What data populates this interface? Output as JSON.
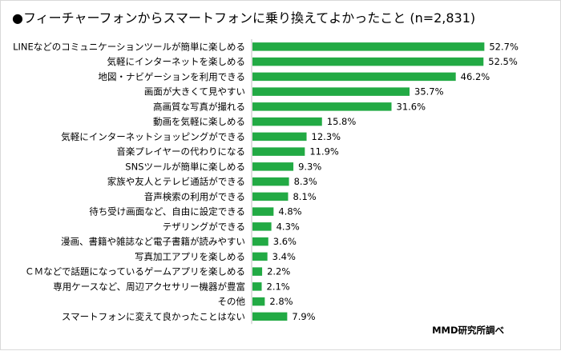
{
  "chart_data": {
    "type": "bar",
    "orientation": "horizontal",
    "title": "●フィーチャーフォンからスマートフォンに乗り換えてよかったこと (n=2,831)",
    "categories": [
      "LINEなどのコミュニケーションツールが簡単に楽しめる",
      "気軽にインターネットを楽しめる",
      "地図・ナビゲーションを利用できる",
      "画面が大きくて見やすい",
      "高画質な写真が撮れる",
      "動画を気軽に楽しめる",
      "気軽にインターネットショッピングができる",
      "音楽プレイヤーの代わりになる",
      "SNSツールが簡単に楽しめる",
      "家族や友人とテレビ通話ができる",
      "音声検索の利用ができる",
      "待ち受け画面など、自由に設定できる",
      "テザリングができる",
      "漫画、書籍や雑誌など電子書籍が読みやすい",
      "写真加工アプリを楽しめる",
      "ＣＭなどで話題になっているゲームアプリを楽しめる",
      "専用ケースなど、周辺アクセサリー機器が豊富",
      "その他",
      "スマートフォンに変えて良かったことはない"
    ],
    "values": [
      52.7,
      52.5,
      46.2,
      35.7,
      31.6,
      15.8,
      12.3,
      11.9,
      9.3,
      8.3,
      8.1,
      4.8,
      4.3,
      3.6,
      3.4,
      2.2,
      2.1,
      2.8,
      7.9
    ],
    "value_labels": [
      "52.7%",
      "52.5%",
      "46.2%",
      "35.7%",
      "31.6%",
      "15.8%",
      "12.3%",
      "11.9%",
      "9.3%",
      "8.3%",
      "8.1%",
      "4.8%",
      "4.3%",
      "3.6%",
      "3.4%",
      "2.2%",
      "2.1%",
      "2.8%",
      "7.9%"
    ],
    "bar_color": "#22aa44",
    "xlim": [
      0,
      55
    ],
    "grid": false
  },
  "source": "MMD研究所調べ"
}
